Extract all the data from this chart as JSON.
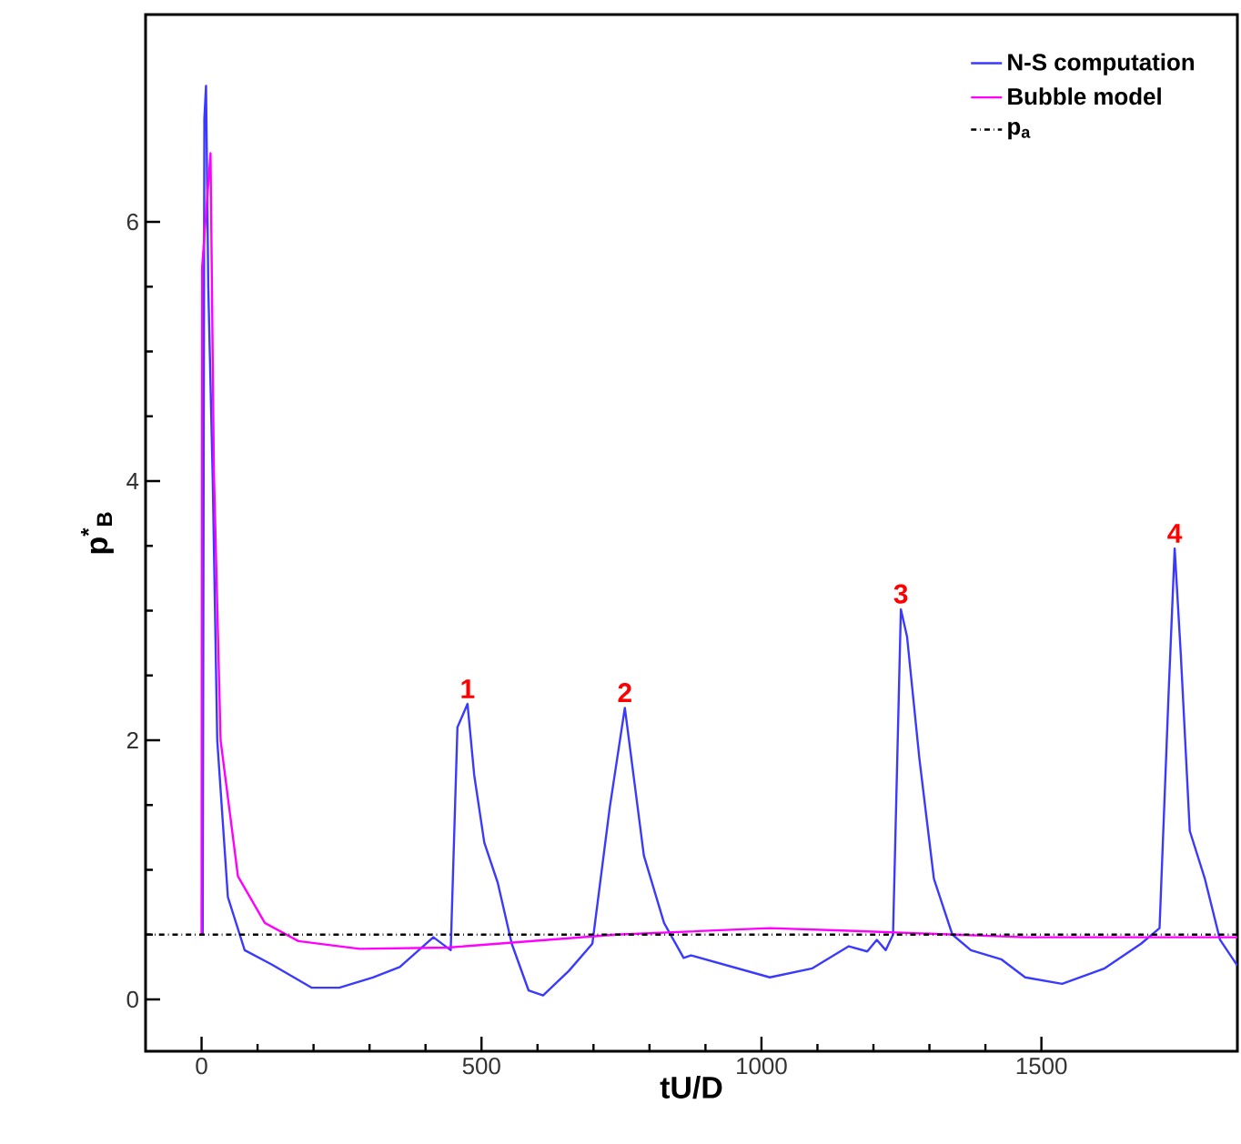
{
  "chart_data": {
    "type": "line",
    "xlabel": "tU/D",
    "ylabel": "p$^{*}$$_{B}$",
    "xlim": [
      -100,
      1850
    ],
    "ylim": [
      -0.4,
      7.6
    ],
    "xticks": [
      0,
      500,
      1000,
      1500
    ],
    "yticks": [
      0,
      2,
      4,
      6
    ],
    "legend": "top right",
    "grid": false,
    "series": [
      {
        "name": "N-S computation",
        "color": "#3a3aff",
        "x": [
          0,
          2,
          5,
          8,
          12,
          20,
          28,
          47,
          77,
          125,
          197,
          246,
          306,
          354,
          414,
          445,
          457,
          475,
          487,
          505,
          529,
          554,
          584,
          610,
          656,
          698,
          729,
          756,
          790,
          826,
          861,
          874,
          1015,
          1091,
          1156,
          1189,
          1206,
          1222,
          1235,
          1249,
          1260,
          1282,
          1308,
          1341,
          1374,
          1428,
          1471,
          1537,
          1613,
          1678,
          1711,
          1727,
          1738,
          1749,
          1765,
          1792,
          1819,
          1850
        ],
        "values": [
          0.5,
          0.5,
          6.8,
          7.05,
          5.5,
          4.0,
          2.0,
          0.79,
          0.38,
          0.27,
          0.09,
          0.09,
          0.17,
          0.25,
          0.48,
          0.38,
          2.1,
          2.28,
          1.73,
          1.21,
          0.9,
          0.43,
          0.07,
          0.03,
          0.22,
          0.43,
          1.48,
          2.25,
          1.11,
          0.59,
          0.32,
          0.34,
          0.17,
          0.24,
          0.41,
          0.37,
          0.46,
          0.38,
          0.5,
          3.01,
          2.8,
          1.86,
          0.93,
          0.5,
          0.38,
          0.31,
          0.17,
          0.12,
          0.24,
          0.43,
          0.55,
          2.34,
          3.48,
          2.66,
          1.3,
          0.93,
          0.46,
          0.26
        ]
      },
      {
        "name": "Bubble model",
        "color": "#ff00ff",
        "x": [
          0,
          1,
          16,
          22,
          34,
          65,
          113,
          173,
          282,
          440,
          740,
          1015,
          1156,
          1471,
          1850
        ],
        "values": [
          0.5,
          5.65,
          6.53,
          4.08,
          2.0,
          0.95,
          0.59,
          0.45,
          0.39,
          0.4,
          0.5,
          0.55,
          0.53,
          0.48,
          0.48
        ]
      }
    ],
    "ref_lines": [
      {
        "axis": "y",
        "value": 0.5,
        "label": "p$_{a}$",
        "color": "#000000",
        "line_style": "dashdot"
      }
    ],
    "annotations": [
      {
        "text": "1",
        "x": 475,
        "y": 2.28
      },
      {
        "text": "2",
        "x": 756,
        "y": 2.25
      },
      {
        "text": "3",
        "x": 1249,
        "y": 3.01
      },
      {
        "text": "4",
        "x": 1738,
        "y": 3.48
      }
    ]
  }
}
